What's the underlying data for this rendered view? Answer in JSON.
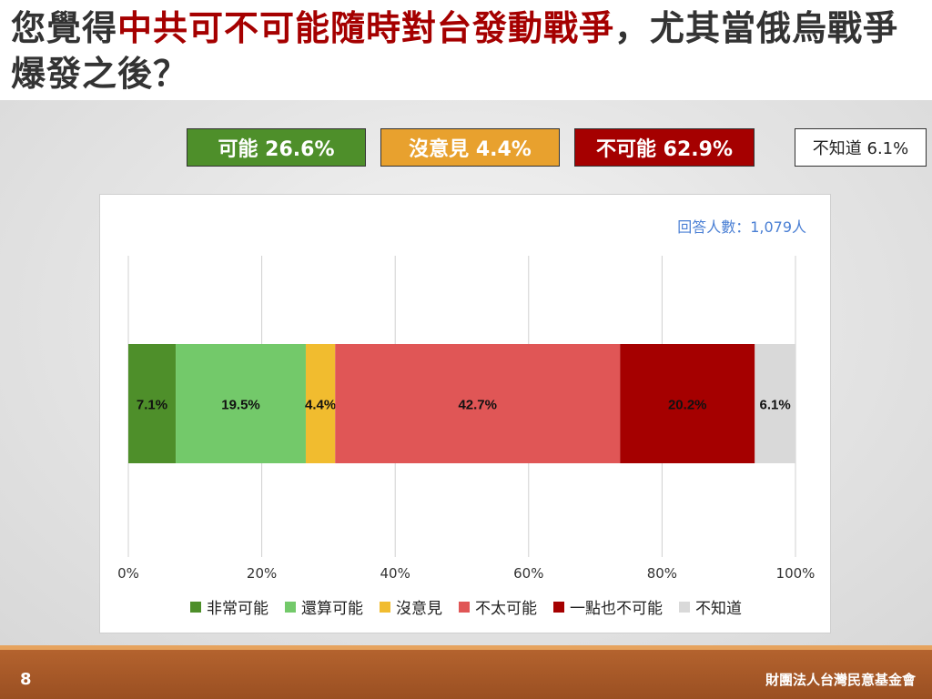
{
  "title": {
    "prefix": "您覺得",
    "highlight": "中共可不可能隨時對台發動戰爭",
    "suffix": "，尤其當俄烏戰爭爆發之後？"
  },
  "summary": {
    "possible": "可能 26.6%",
    "no_opinion": "沒意見 4.4%",
    "impossible": "不可能 62.9%",
    "unknown": "不知道 6.1%"
  },
  "respondents": "回答人數：1,079人",
  "chart_data": {
    "type": "bar",
    "orientation": "horizontal",
    "stacked": true,
    "xlim": [
      0,
      100
    ],
    "x_ticks": [
      "0%",
      "20%",
      "40%",
      "60%",
      "80%",
      "100%"
    ],
    "grid": true,
    "legend_position": "bottom",
    "series": [
      {
        "name": "非常可能",
        "value": 7.1,
        "label": "7.1%",
        "color": "#4e8f2a"
      },
      {
        "name": "還算可能",
        "value": 19.5,
        "label": "19.5%",
        "color": "#73c96a"
      },
      {
        "name": "沒意見",
        "value": 4.4,
        "label": "4.4%",
        "color": "#f1bc2f"
      },
      {
        "name": "不太可能",
        "value": 42.7,
        "label": "42.7%",
        "color": "#e05656"
      },
      {
        "name": "一點也不可能",
        "value": 20.2,
        "label": "20.2%",
        "color": "#a50000"
      },
      {
        "name": "不知道",
        "value": 6.1,
        "label": "6.1%",
        "color": "#d9d9d9"
      }
    ]
  },
  "footer": {
    "page_number": "8",
    "organization": "財團法人台灣民意基金會"
  }
}
